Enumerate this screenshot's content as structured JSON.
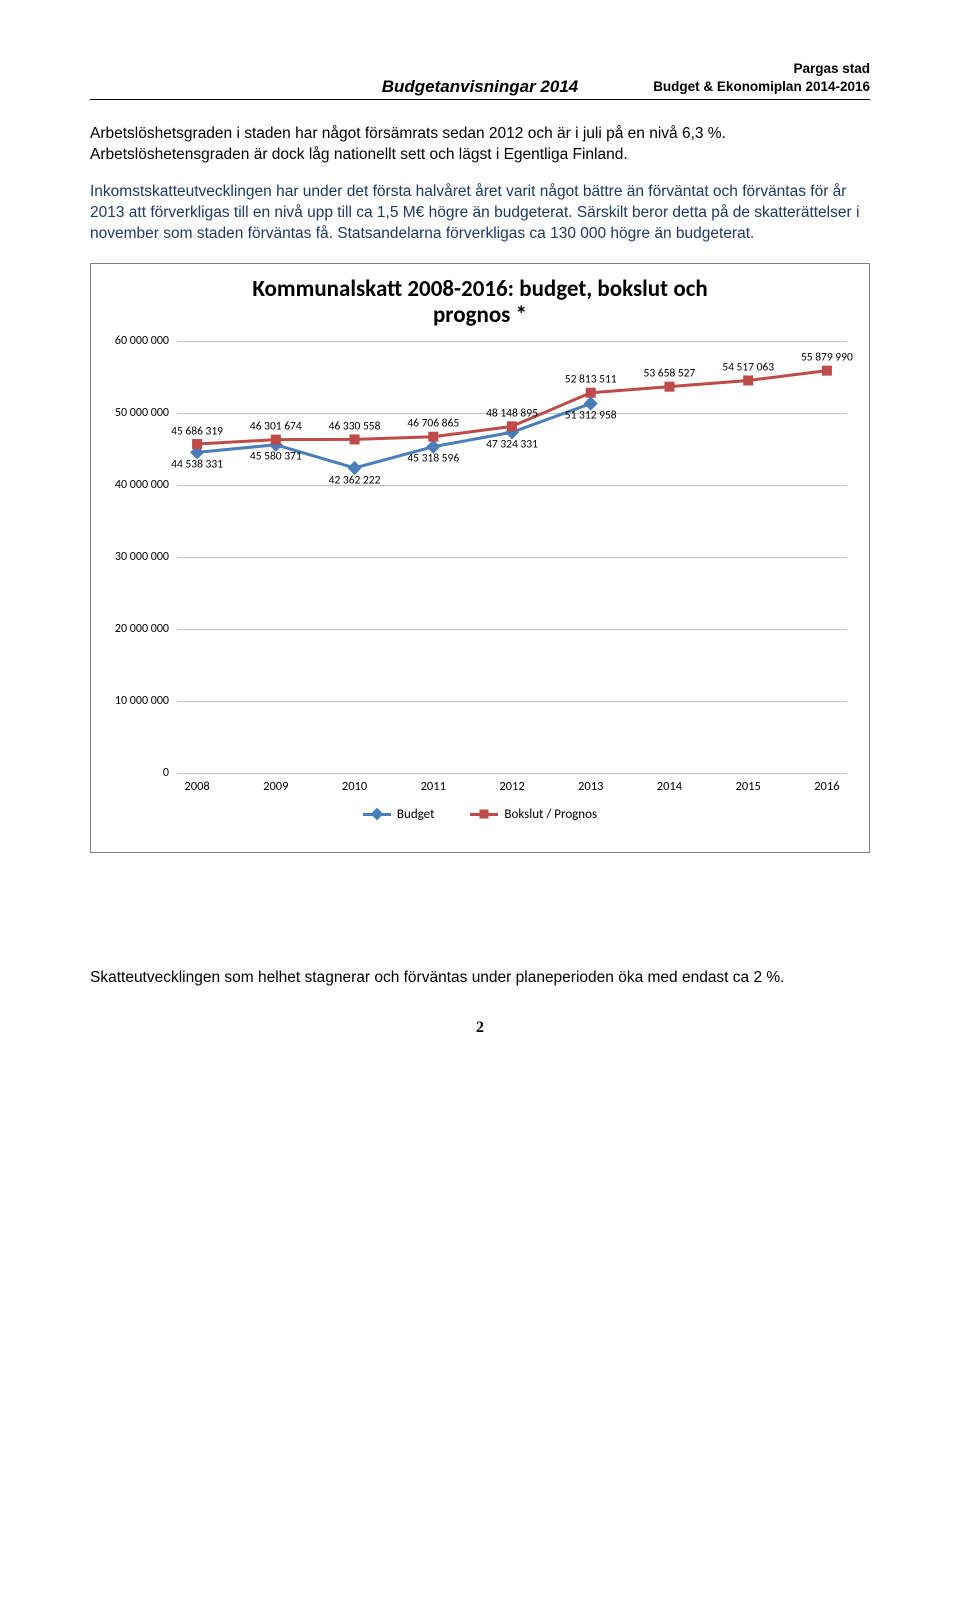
{
  "header": {
    "line1": "Pargas stad",
    "line2": "Budget & Ekonomiplan 2014-2016",
    "center": "Budgetanvisningar 2014"
  },
  "para1": "Arbetslöshetsgraden i staden har något försämrats sedan 2012 och är i juli på en nivå 6,3 %. Arbetslöshetensgraden är dock låg nationellt sett och lägst i Egentliga Finland.",
  "para2": "Inkomstskatteutvecklingen har under det första halvåret året varit något bättre än förväntat och förväntas för år 2013 att förverkligas till en nivå upp till ca 1,5 M€ högre än budgeterat. Särskilt beror detta på de skatterättelser i november som staden förväntas få. Statsandelarna förverkligas ca 130 000 högre än budgeterat.",
  "para3": "Skatteutvecklingen som helhet stagnerar och förväntas under planeperioden öka med endast ca 2 %.",
  "page_number": "2",
  "chart": {
    "type": "line",
    "title_l1": "Kommunalskatt 2008-2016: budget, bokslut och",
    "title_l2": "prognos *",
    "ylim": [
      0,
      60000000
    ],
    "ytick_step": 10000000,
    "y_ticks": [
      "0",
      "10 000 000",
      "20 000 000",
      "30 000 000",
      "40 000 000",
      "50 000 000",
      "60 000 000"
    ],
    "categories": [
      "2008",
      "2009",
      "2010",
      "2011",
      "2012",
      "2013",
      "2014",
      "2015",
      "2016"
    ],
    "series": [
      {
        "name": "Budget",
        "color": "#4a7ebb",
        "marker": "diamond",
        "values": [
          44538331,
          45580371,
          42362222,
          45318596,
          47324331,
          51312958,
          null,
          null,
          null
        ],
        "labels": [
          "44 538 331",
          "45 580 371",
          "42 362 222",
          "45 318 596",
          "47 324 331",
          "51 312 958",
          "",
          "",
          ""
        ],
        "label_pos": [
          "below",
          "below",
          "below",
          "below",
          "below",
          "below",
          "",
          "",
          ""
        ]
      },
      {
        "name": "Bokslut / Prognos",
        "color": "#be4b48",
        "marker": "square",
        "values": [
          45686319,
          46301674,
          46330558,
          46706865,
          48148895,
          52813511,
          53658527,
          54517063,
          55879990
        ],
        "labels": [
          "45 686 319",
          "46 301 674",
          "46 330 558",
          "46 706 865",
          "48 148 895",
          "52 813 511",
          "53 658 527",
          "54 517 063",
          "55 879 990"
        ],
        "label_pos": [
          "above",
          "above",
          "above",
          "above",
          "above",
          "above",
          "above",
          "above",
          "above"
        ]
      }
    ],
    "legend": {
      "item1": "Budget",
      "item2": "Bokslut / Prognos"
    },
    "grid_color": "#bfbfbf",
    "line_width": 3
  }
}
